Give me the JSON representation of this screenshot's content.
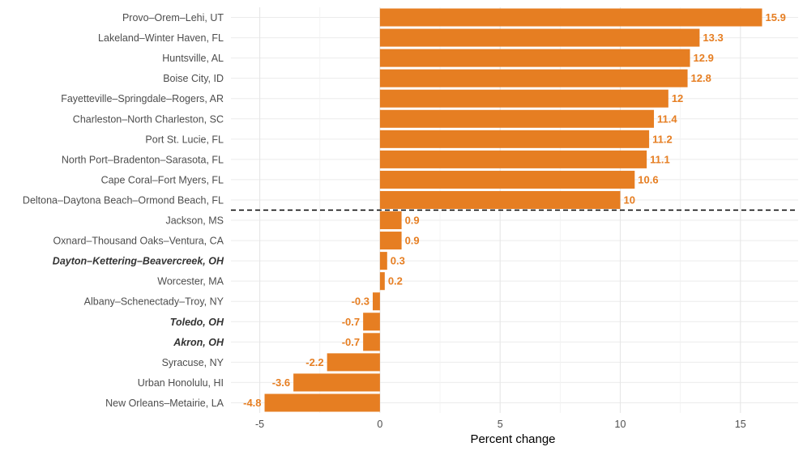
{
  "chart_data": {
    "type": "bar",
    "orientation": "horizontal",
    "xlabel": "Percent change",
    "xlim": [
      -6.2,
      17.4
    ],
    "x_ticks": [
      -5,
      0,
      5,
      10,
      15
    ],
    "x_tick_labels": [
      "-5",
      "0",
      "5",
      "10",
      "15"
    ],
    "grid": true,
    "bar_color": "#E67E22",
    "label_color": "#E67E22",
    "separator": {
      "after_index": 9,
      "style": "dashed"
    },
    "emphasized_categories": [
      "Dayton–Kettering–Beavercreek, OH",
      "Toledo, OH",
      "Akron, OH"
    ],
    "categories": [
      "Provo–Orem–Lehi, UT",
      "Lakeland–Winter Haven, FL",
      "Huntsville, AL",
      "Boise City, ID",
      "Fayetteville–Springdale–Rogers, AR",
      "Charleston–North Charleston, SC",
      "Port St. Lucie, FL",
      "North Port–Bradenton–Sarasota, FL",
      "Cape Coral–Fort Myers, FL",
      "Deltona–Daytona Beach–Ormond Beach, FL",
      "Jackson, MS",
      "Oxnard–Thousand Oaks–Ventura, CA",
      "Dayton–Kettering–Beavercreek, OH",
      "Worcester, MA",
      "Albany–Schenectady–Troy, NY",
      "Toledo, OH",
      "Akron, OH",
      "Syracuse, NY",
      "Urban Honolulu, HI",
      "New Orleans–Metairie, LA"
    ],
    "values": [
      15.9,
      13.3,
      12.9,
      12.8,
      12,
      11.4,
      11.2,
      11.1,
      10.6,
      10,
      0.9,
      0.9,
      0.3,
      0.2,
      -0.3,
      -0.7,
      -0.7,
      -2.2,
      -3.6,
      -4.8
    ],
    "value_labels": [
      "15.9",
      "13.3",
      "12.9",
      "12.8",
      "12",
      "11.4",
      "11.2",
      "11.1",
      "10.6",
      "10",
      "0.9",
      "0.9",
      "0.3",
      "0.2",
      "-0.3",
      "-0.7",
      "-0.7",
      "-2.2",
      "-3.6",
      "-4.8"
    ]
  }
}
